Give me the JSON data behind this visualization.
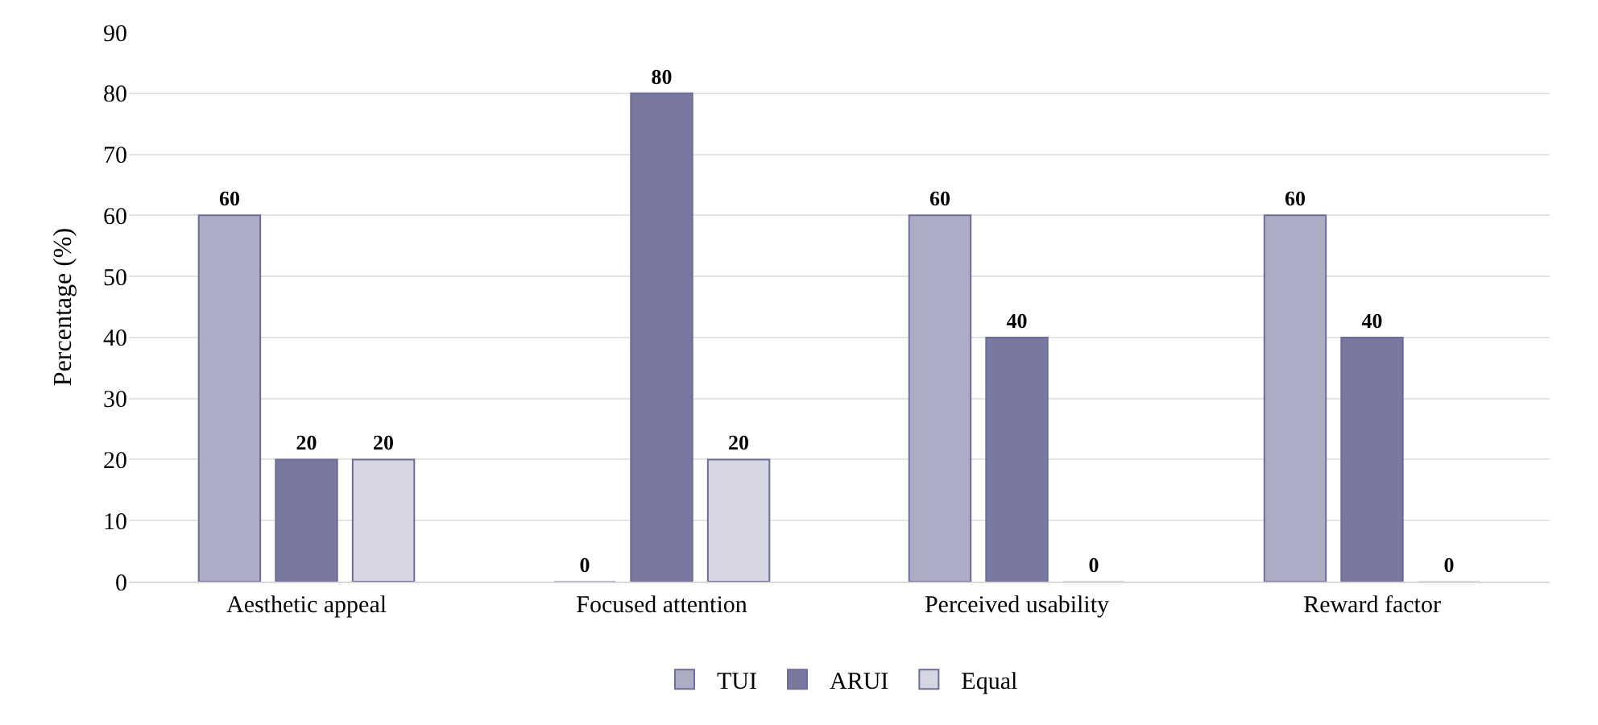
{
  "chart_data": {
    "type": "bar",
    "ylabel": "Percentage (%)",
    "categories": [
      "Aesthetic appeal",
      "Focused attention",
      "Perceived usability",
      "Reward factor"
    ],
    "series": [
      {
        "name": "TUI",
        "color": "#acacc4",
        "values": [
          60,
          0,
          60,
          60
        ]
      },
      {
        "name": "ARUI",
        "color": "#79789e",
        "values": [
          20,
          80,
          40,
          40
        ]
      },
      {
        "name": "Equal",
        "color": "#d6d6e2",
        "values": [
          20,
          20,
          0,
          0
        ]
      }
    ],
    "ylim": [
      0,
      90
    ],
    "yticks": [
      0,
      10,
      20,
      30,
      40,
      50,
      60,
      70,
      80,
      90
    ],
    "grid": "y",
    "legend": "bottom",
    "data_labels": true
  }
}
